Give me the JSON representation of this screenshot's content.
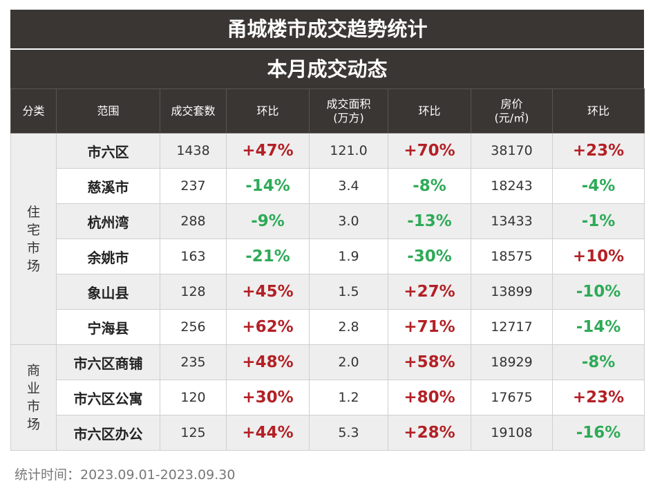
{
  "title": "甬城楼市成交趋势统计",
  "subtitle": "本月成交动态",
  "headers": [
    "分类",
    "范围",
    "成交套数",
    "环比",
    "成交面积\n(万方)",
    "环比",
    "房价\n(元/㎡)",
    "环比"
  ],
  "groups": [
    {
      "category": "住宅市场",
      "rows": [
        {
          "region": "市六区",
          "units": "1438",
          "units_chg": "+47%",
          "area": "121.0",
          "area_chg": "+70%",
          "price": "38170",
          "price_chg": "+23%"
        },
        {
          "region": "慈溪市",
          "units": "237",
          "units_chg": "-14%",
          "area": "3.4",
          "area_chg": "-8%",
          "price": "18243",
          "price_chg": "-4%"
        },
        {
          "region": "杭州湾",
          "units": "288",
          "units_chg": "-9%",
          "area": "3.0",
          "area_chg": "-13%",
          "price": "13433",
          "price_chg": "-1%"
        },
        {
          "region": "余姚市",
          "units": "163",
          "units_chg": "-21%",
          "area": "1.9",
          "area_chg": "-30%",
          "price": "18575",
          "price_chg": "+10%"
        },
        {
          "region": "象山县",
          "units": "128",
          "units_chg": "+45%",
          "area": "1.5",
          "area_chg": "+27%",
          "price": "13899",
          "price_chg": "-10%"
        },
        {
          "region": "宁海县",
          "units": "256",
          "units_chg": "+62%",
          "area": "2.8",
          "area_chg": "+71%",
          "price": "12717",
          "price_chg": "-14%"
        }
      ]
    },
    {
      "category": "商业市场",
      "rows": [
        {
          "region": "市六区商铺",
          "units": "235",
          "units_chg": "+48%",
          "area": "2.0",
          "area_chg": "+58%",
          "price": "18929",
          "price_chg": "-8%"
        },
        {
          "region": "市六区公寓",
          "units": "120",
          "units_chg": "+30%",
          "area": "1.2",
          "area_chg": "+80%",
          "price": "17675",
          "price_chg": "+23%"
        },
        {
          "region": "市六区办公",
          "units": "125",
          "units_chg": "+44%",
          "area": "5.3",
          "area_chg": "+28%",
          "price": "19108",
          "price_chg": "-16%"
        }
      ]
    }
  ],
  "footer": "统计时间：2023.09.01-2023.09.30",
  "colors": {
    "header_bg": "#3a3634",
    "up": "#b32025",
    "down": "#2eaa57"
  }
}
